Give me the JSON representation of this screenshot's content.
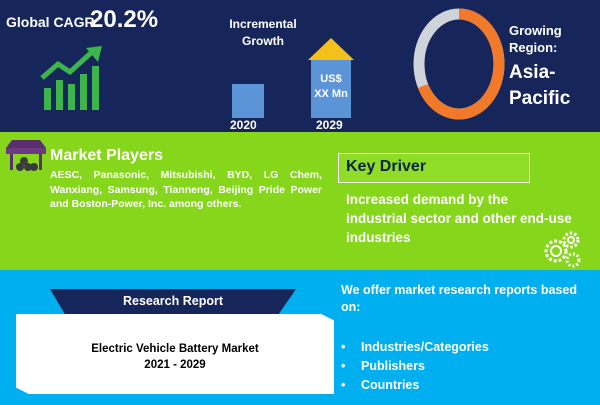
{
  "cagr": {
    "label": "Global CAGR",
    "value": "20.2%"
  },
  "growth": {
    "title_line1": "Incremental",
    "title_line2": "Growth",
    "year_start": "2020",
    "year_end": "2029",
    "value_line1": "US$",
    "value_line2": "XX Mn"
  },
  "region": {
    "label_line1": "Growing",
    "label_line2": "Region:",
    "value_line1": "Asia-",
    "value_line2": "Pacific"
  },
  "market_players": {
    "title": "Market Players",
    "body": "AESC, Panasonic, Mitsubishi, BYD, LG Chem, Wanxiang, Samsung, Tianneng, Beijing Pride Power and Boston-Power, Inc. among others."
  },
  "key_driver": {
    "title": "Key Driver",
    "body": "Increased demand by the industrial sector and other end-use industries"
  },
  "report": {
    "banner": "Research Report",
    "title_line1": "Electric Vehicle Battery Market",
    "title_line2": "2021 - 2029"
  },
  "offer": {
    "intro": "We offer market research reports based on:",
    "items": [
      "Industries/Categories",
      "Publishers",
      "Countries"
    ]
  },
  "colors": {
    "navy": "#17265a",
    "green": "#86d61b",
    "sky": "#00aff0",
    "orange": "#f0792a",
    "arrow_gold": "#f3c11a"
  },
  "icons": [
    "trend-up-icon",
    "market-stall-icon",
    "gears-icon"
  ]
}
